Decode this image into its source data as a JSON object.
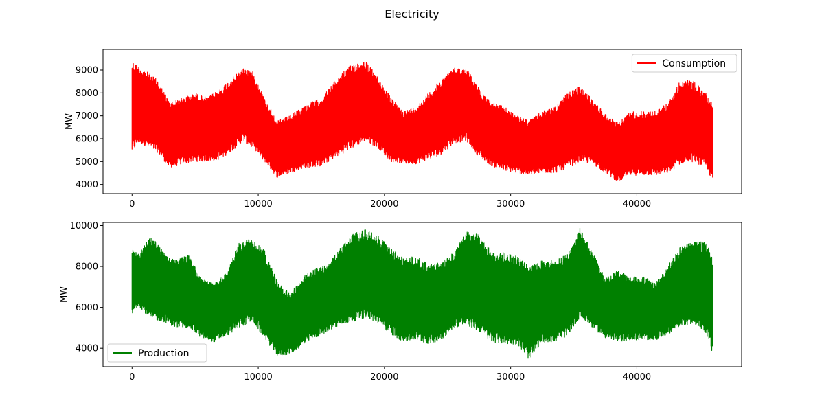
{
  "chart_data": {
    "title": "Electricity",
    "panels": [
      {
        "type": "line",
        "series": [
          {
            "name": "Consumption",
            "color": "#ff0000",
            "x": [
              0,
              500,
              1000,
              2000,
              3000,
              4000,
              5000,
              6000,
              7000,
              8000,
              8800,
              9500,
              10500,
              11500,
              12500,
              13500,
              15000,
              16500,
              17500,
              18500,
              19500,
              20500,
              21500,
              22500,
              23500,
              24500,
              25500,
              26500,
              27500,
              28500,
              29500,
              30500,
              31500,
              32500,
              33500,
              34500,
              35500,
              36500,
              37500,
              38500,
              39500,
              40500,
              41500,
              42500,
              43500,
              44500,
              45500,
              46000
            ],
            "upper": [
              9400,
              9200,
              9000,
              8600,
              7600,
              7800,
              8000,
              7800,
              8200,
              8700,
              9100,
              9000,
              7800,
              6800,
              7000,
              7400,
              7800,
              8800,
              9300,
              9400,
              8700,
              7800,
              7200,
              7400,
              8000,
              8600,
              9100,
              9100,
              8200,
              7600,
              7400,
              7000,
              6800,
              7200,
              7400,
              8000,
              8300,
              7700,
              7100,
              6700,
              7200,
              7200,
              7200,
              7600,
              8600,
              8500,
              8000,
              7600
            ],
            "lower": [
              5400,
              5800,
              5700,
              5400,
              4700,
              4900,
              5000,
              5000,
              5100,
              5500,
              5900,
              5600,
              5000,
              4300,
              4500,
              4700,
              4800,
              5300,
              5600,
              5900,
              5600,
              5000,
              4900,
              4900,
              5100,
              5300,
              5800,
              5900,
              5200,
              4800,
              4600,
              4500,
              4400,
              4500,
              4500,
              4700,
              5000,
              4900,
              4500,
              4100,
              4400,
              4400,
              4400,
              4500,
              4900,
              5000,
              4700,
              4100
            ]
          }
        ],
        "ylabel": "MW",
        "xlim": [
          -2300,
          48300
        ],
        "ylim": [
          3600,
          9900
        ],
        "xticks": [
          0,
          10000,
          20000,
          30000,
          40000
        ],
        "yticks": [
          4000,
          5000,
          6000,
          7000,
          8000,
          9000
        ],
        "grid": false,
        "legend": "upper right"
      },
      {
        "type": "line",
        "series": [
          {
            "name": "Production",
            "color": "#008000",
            "x": [
              0,
              500,
              1500,
              2500,
              3500,
              4500,
              5500,
              6500,
              7500,
              8500,
              9500,
              10500,
              11500,
              12500,
              13500,
              14500,
              15500,
              16500,
              17500,
              18500,
              19500,
              20500,
              21500,
              22500,
              23500,
              24500,
              25500,
              26500,
              27500,
              28500,
              29500,
              30500,
              31500,
              32500,
              33500,
              34500,
              35500,
              36500,
              37500,
              38500,
              39500,
              40500,
              41500,
              42500,
              43500,
              44500,
              45500,
              46000
            ],
            "upper": [
              8900,
              8600,
              9500,
              8800,
              8300,
              8600,
              7400,
              7200,
              7700,
              9200,
              9400,
              8800,
              7300,
              6700,
              7500,
              7900,
              8100,
              8900,
              9600,
              9800,
              9500,
              8900,
              8400,
              8500,
              8100,
              8200,
              8700,
              9700,
              9600,
              8700,
              8700,
              8500,
              8000,
              8300,
              8300,
              8600,
              9900,
              8700,
              7400,
              7800,
              7500,
              7500,
              7200,
              8100,
              9000,
              9200,
              9200,
              8400
            ],
            "lower": [
              5600,
              6100,
              5400,
              5300,
              5000,
              5000,
              4500,
              4300,
              4600,
              5000,
              5300,
              4500,
              3600,
              3700,
              4100,
              4500,
              4800,
              5100,
              5300,
              5500,
              5200,
              4700,
              4300,
              4400,
              4200,
              4400,
              5000,
              5100,
              4800,
              4300,
              4200,
              4200,
              3400,
              4300,
              4300,
              4600,
              5500,
              5000,
              4500,
              4300,
              4400,
              4400,
              4400,
              4700,
              5100,
              5200,
              4700,
              3700
            ]
          }
        ],
        "ylabel": "MW",
        "xlim": [
          -2300,
          48300
        ],
        "ylim": [
          3100,
          10150
        ],
        "xticks": [
          0,
          10000,
          20000,
          30000,
          40000
        ],
        "yticks": [
          4000,
          6000,
          8000,
          10000
        ],
        "grid": false,
        "legend": "lower left"
      }
    ]
  }
}
